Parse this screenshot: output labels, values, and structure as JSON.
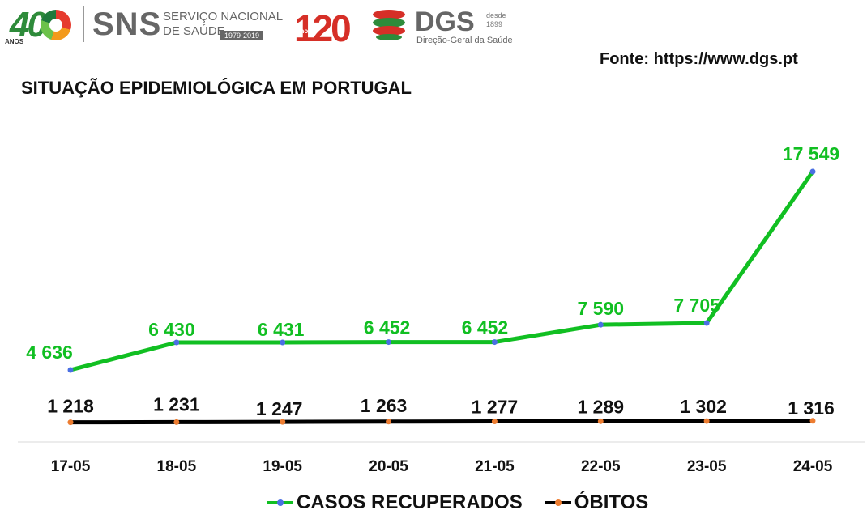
{
  "header": {
    "logo40": {
      "number": "40",
      "subtitle": "ANOS"
    },
    "sns": {
      "abbr": "SNS",
      "line1": "SERVIÇO NACIONAL",
      "line2": "DE SAÚDE",
      "years": "1979-2019"
    },
    "logo120": {
      "number": "120",
      "subtitle": "anos"
    },
    "dgs": {
      "abbr": "DGS",
      "since_label": "desde",
      "since_year": "1899",
      "full_name": "Direção-Geral da Saúde"
    }
  },
  "source": "Fonte: https://www.dgs.pt",
  "colors": {
    "recovered": "#11bf22",
    "deaths": "#000000",
    "recovered_marker": "#4a6fe3",
    "deaths_marker": "#ed7d31",
    "axis": "#d9d9d9"
  },
  "chart_data": {
    "type": "line",
    "title": "SITUAÇÃO EPIDEMIOLÓGICA EM PORTUGAL",
    "categories": [
      "17-05",
      "18-05",
      "19-05",
      "20-05",
      "21-05",
      "22-05",
      "23-05",
      "24-05"
    ],
    "series": [
      {
        "name": "CASOS RECUPERADOS",
        "values": [
          4636,
          6430,
          6431,
          6452,
          6452,
          7590,
          7705,
          17549
        ],
        "labels": [
          "4 636",
          "6 430",
          "6 431",
          "6 452",
          "6 452",
          "7 590",
          "7 705",
          "17 549"
        ]
      },
      {
        "name": "ÓBITOS",
        "values": [
          1218,
          1231,
          1247,
          1263,
          1277,
          1289,
          1302,
          1316
        ],
        "labels": [
          "1 218",
          "1 231",
          "1 247",
          "1 263",
          "1 277",
          "1 289",
          "1 302",
          "1 316"
        ]
      }
    ],
    "legend_position": "bottom",
    "grid": false
  }
}
